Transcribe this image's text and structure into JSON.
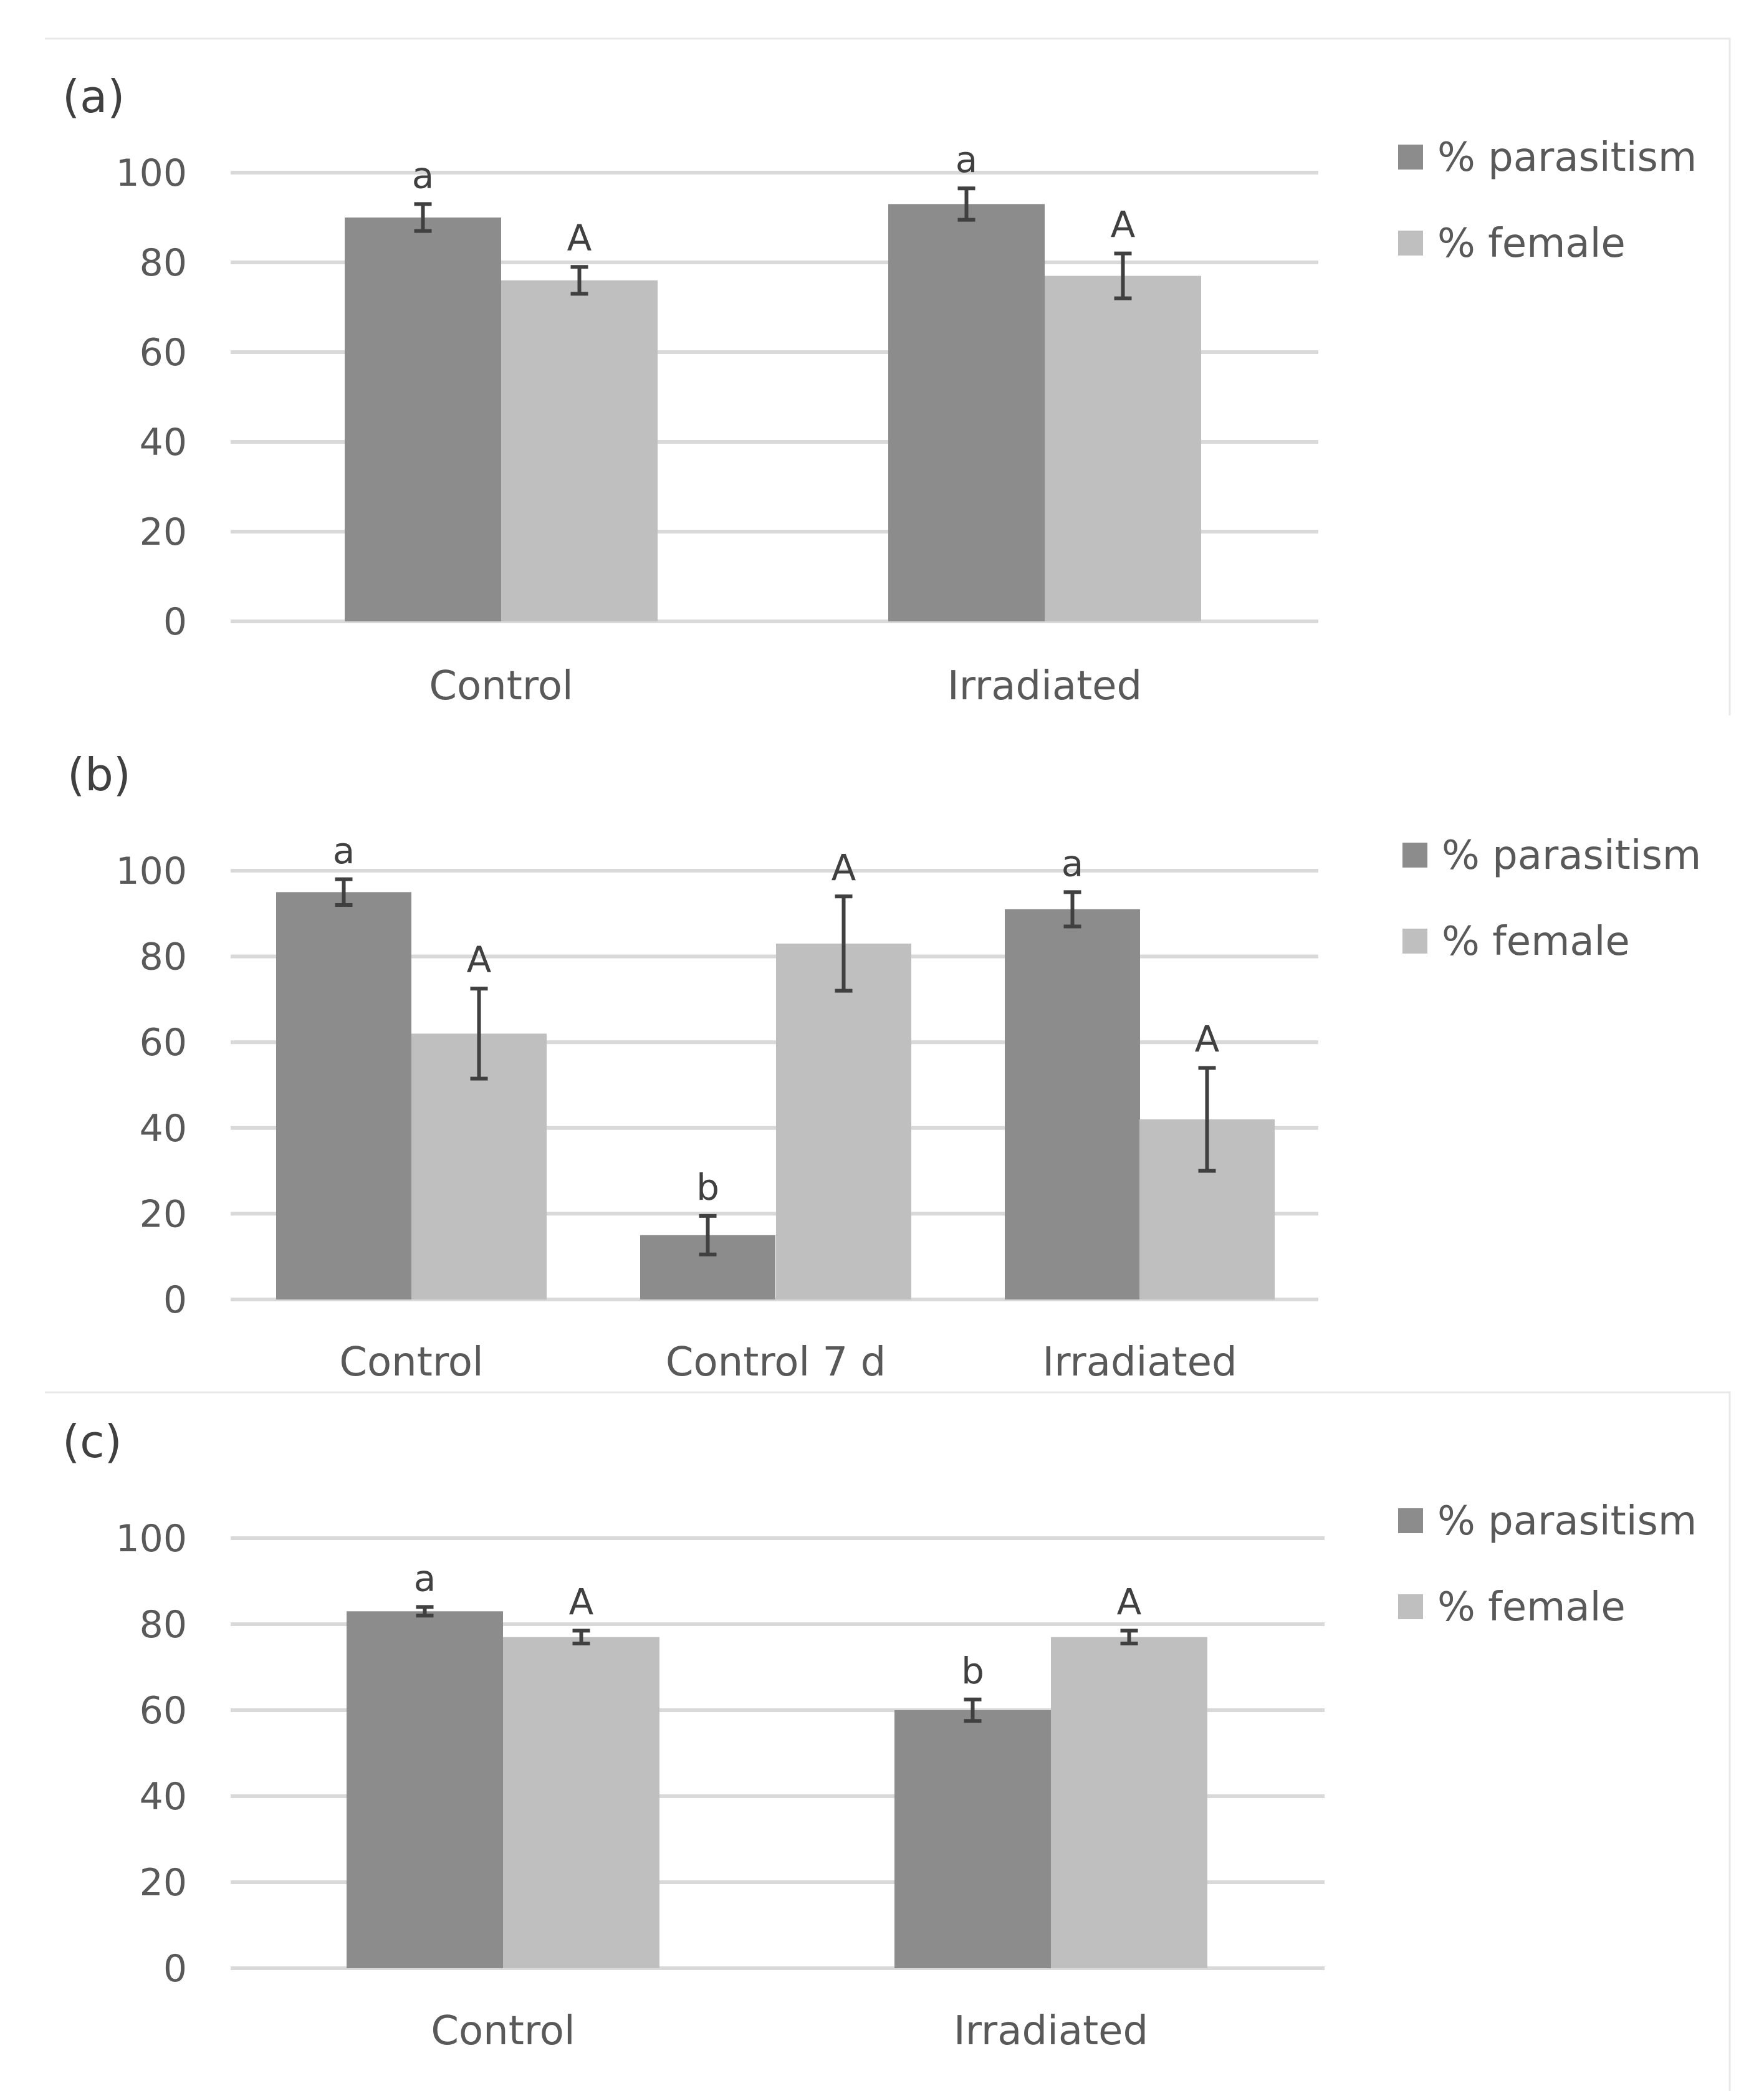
{
  "figure": {
    "panels": [
      "(a)",
      "(b)",
      "(c)"
    ]
  },
  "colors": {
    "parasitism": "#8c8c8c",
    "female": "#bfbfbf"
  },
  "chart_data": [
    {
      "type": "bar",
      "panel_label": "(a)",
      "categories": [
        "Control",
        "Irradiated"
      ],
      "series": [
        {
          "name": "% parasitism",
          "values": [
            90,
            93
          ],
          "errors": [
            3,
            3.5
          ],
          "sig": [
            "a",
            "a"
          ]
        },
        {
          "name": "% female",
          "values": [
            76,
            77
          ],
          "errors": [
            3,
            5
          ],
          "sig": [
            "A",
            "A"
          ]
        }
      ],
      "yticks": [
        0,
        20,
        40,
        60,
        80,
        100
      ],
      "ylim": [
        0,
        100
      ],
      "legend": "right",
      "grid": true
    },
    {
      "type": "bar",
      "panel_label": "(b)",
      "categories": [
        "Control",
        "Control 7 d",
        "Irradiated"
      ],
      "series": [
        {
          "name": "% parasitism",
          "values": [
            95,
            15,
            91
          ],
          "errors": [
            3,
            4.5,
            4
          ],
          "sig": [
            "a",
            "b",
            "a"
          ]
        },
        {
          "name": "% female",
          "values": [
            62,
            83,
            42
          ],
          "errors": [
            10.5,
            11,
            12
          ],
          "sig": [
            "A",
            "A",
            "A"
          ]
        }
      ],
      "yticks": [
        0,
        20,
        40,
        60,
        80,
        100
      ],
      "ylim": [
        0,
        100
      ],
      "legend": "right",
      "grid": true
    },
    {
      "type": "bar",
      "panel_label": "(c)",
      "categories": [
        "Control",
        "Irradiated"
      ],
      "series": [
        {
          "name": "% parasitism",
          "values": [
            83,
            60
          ],
          "errors": [
            1,
            2.5
          ],
          "sig": [
            "a",
            "b"
          ]
        },
        {
          "name": "% female",
          "values": [
            77,
            77
          ],
          "errors": [
            1.5,
            1.5
          ],
          "sig": [
            "A",
            "A"
          ]
        }
      ],
      "yticks": [
        0,
        20,
        40,
        60,
        80,
        100
      ],
      "ylim": [
        0,
        100
      ],
      "legend": "right",
      "grid": true
    }
  ]
}
